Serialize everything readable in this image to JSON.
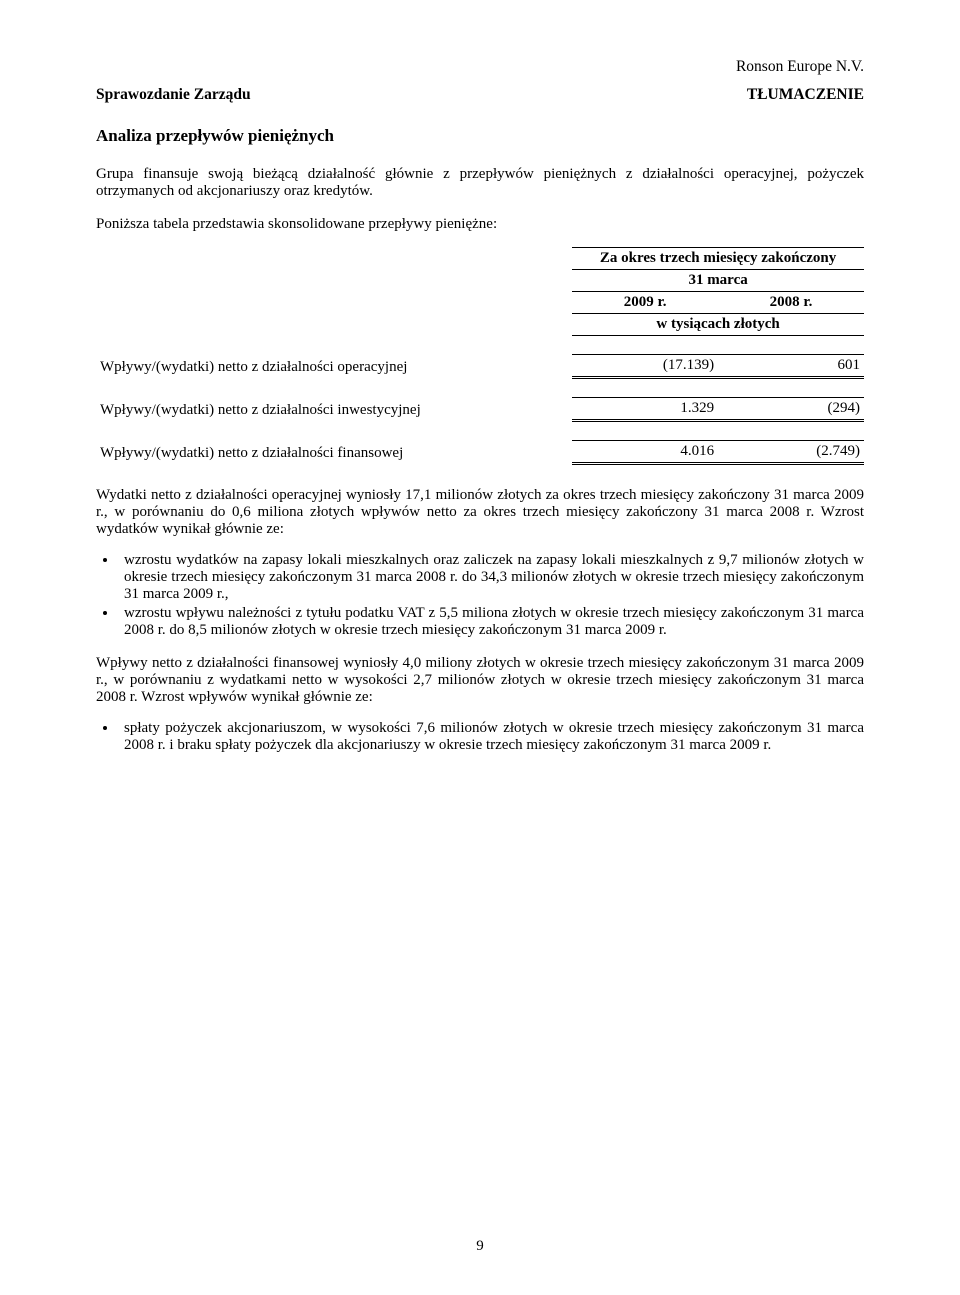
{
  "header": {
    "company": "Ronson Europe N.V.",
    "left": "Sprawozdanie Zarządu",
    "right": "TŁUMACZENIE"
  },
  "title": "Analiza przepływów pieniężnych",
  "para_intro": "Grupa finansuje swoją bieżącą działalność głównie z przepływów pieniężnych z działalności operacyjnej, pożyczek otrzymanych od akcjonariuszy oraz kredytów.",
  "para_intro2": "Poniższa tabela przedstawia skonsolidowane przepływy pieniężne:",
  "table": {
    "header1": "Za okres trzech miesięcy zakończony",
    "header2": "31 marca",
    "year1": "2009 r.",
    "year2": "2008 r.",
    "unit": "w tysiącach złotych",
    "rows": [
      {
        "label": "Wpływy/(wydatki) netto z działalności operacyjnej",
        "v1": "(17.139)",
        "v2": "601"
      },
      {
        "label": "Wpływy/(wydatki) netto z działalności inwestycyjnej",
        "v1": "1.329",
        "v2": "(294)"
      },
      {
        "label": "Wpływy/(wydatki) netto z działalności finansowej",
        "v1": "4.016",
        "v2": "(2.749)"
      }
    ]
  },
  "para2": "Wydatki netto z działalności operacyjnej wyniosły 17,1 milionów złotych za okres trzech miesięcy zakończony 31 marca 2009 r., w porównaniu do 0,6 miliona złotych wpływów netto za okres trzech miesięcy zakończony 31 marca 2008 r. Wzrost wydatków wynikał głównie ze:",
  "bullets1": [
    "wzrostu wydatków na zapasy lokali mieszkalnych oraz zaliczek na zapasy lokali mieszkalnych z 9,7 milionów złotych w okresie trzech miesięcy zakończonym 31 marca 2008 r. do 34,3 milionów złotych w okresie trzech miesięcy zakończonym 31 marca 2009 r.,",
    "wzrostu wpływu należności z tytułu podatku VAT z 5,5 miliona złotych w okresie trzech miesięcy zakończonym 31 marca 2008 r. do 8,5 milionów złotych w okresie trzech miesięcy zakończonym 31 marca 2009 r."
  ],
  "para3": "Wpływy netto z działalności finansowej wyniosły 4,0 miliony złotych w okresie trzech miesięcy zakończonym 31 marca 2009 r., w porównaniu z wydatkami netto w wysokości 2,7 milionów złotych w okresie trzech miesięcy zakończonym 31 marca 2008 r. Wzrost wpływów wynikał głównie ze:",
  "bullets2": [
    "spłaty pożyczek akcjonariuszom, w wysokości 7,6 milionów złotych w okresie trzech miesięcy zakończonym 31 marca 2008 r. i braku spłaty pożyczek dla akcjonariuszy w okresie trzech miesięcy zakończonym 31 marca 2009 r."
  ],
  "page_number": "9"
}
